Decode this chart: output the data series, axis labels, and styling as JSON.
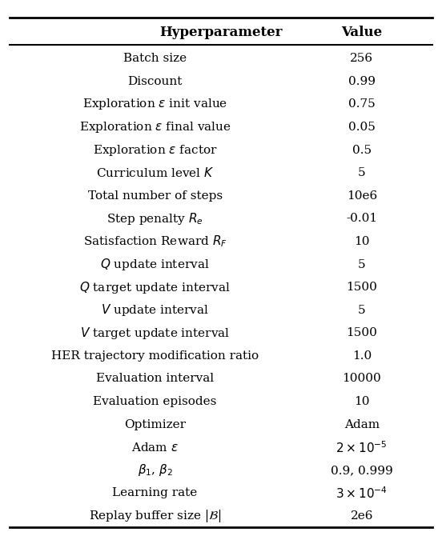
{
  "title_left": "Hyperparameter",
  "title_right": "Value",
  "rows": [
    [
      "Batch size",
      "256"
    ],
    [
      "Discount",
      "0.99"
    ],
    [
      "Exploration $\\epsilon$ init value",
      "0.75"
    ],
    [
      "Exploration $\\epsilon$ final value",
      "0.05"
    ],
    [
      "Exploration $\\epsilon$ factor",
      "0.5"
    ],
    [
      "Curriculum level $K$",
      "5"
    ],
    [
      "Total number of steps",
      "10e6"
    ],
    [
      "Step penalty $R_e$",
      "-0.01"
    ],
    [
      "Satisfaction Reward $R_F$",
      "10"
    ],
    [
      "$Q$ update interval",
      "5"
    ],
    [
      "$Q$ target update interval",
      "1500"
    ],
    [
      "$V$ update interval",
      "5"
    ],
    [
      "$V$ target update interval",
      "1500"
    ],
    [
      "HER trajectory modification ratio",
      "1.0"
    ],
    [
      "Evaluation interval",
      "10000"
    ],
    [
      "Evaluation episodes",
      "10"
    ],
    [
      "Optimizer",
      "Adam"
    ],
    [
      "Adam $\\epsilon$",
      "$2 \\times 10^{-5}$"
    ],
    [
      "$\\beta_1$, $\\beta_2$",
      "0.9, 0.999"
    ],
    [
      "Learning rate",
      "$3 \\times 10^{-4}$"
    ],
    [
      "Replay buffer size $|\\mathcal{B}|$",
      "2e6"
    ]
  ],
  "bg_color": "#ffffff",
  "text_color": "#000000",
  "header_fontsize": 12,
  "row_fontsize": 11,
  "fig_width": 5.52,
  "fig_height": 6.8
}
